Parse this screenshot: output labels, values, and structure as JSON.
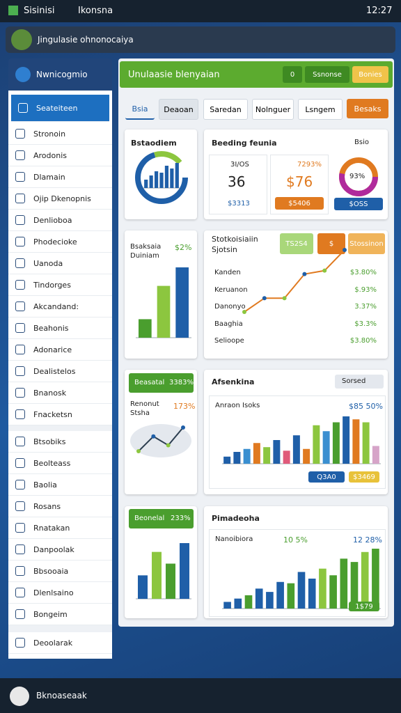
{
  "status": {
    "app": "Sisinisi",
    "app2": "Ikonsna",
    "time": "12:27"
  },
  "search": {
    "placeholder": "Jingulasie ohnonocaiya"
  },
  "sidebar": {
    "title": "Nwnicogmio",
    "groups": [
      [
        "Seateiteen",
        "Stronoin",
        "Arodonis",
        "Dlamain",
        "Ojip Dkenopnis",
        "Denlioboa",
        "Phodecioke",
        "Uanoda",
        "Tindorges",
        "Akcandand:",
        "Beahonis",
        "Adonarice",
        "Dealistelos",
        "Bnanosk",
        "Fnacketsn"
      ],
      [
        "Btsobiks",
        "Beolteass",
        "Baolia",
        "Rosans",
        "Rnatakan",
        "Danpoolak",
        "Bbsooaia",
        "Dlenlsaino",
        "Bongeim"
      ],
      [
        "Deoolarak"
      ]
    ]
  },
  "header": {
    "title": "Unulaasie blenyaian",
    "buttons": [
      "0",
      "Ssnonse",
      "Bonies"
    ]
  },
  "tabs": [
    "Bsia",
    "Deaoan",
    "Saredan",
    "Nolnguer",
    "Lsngem",
    "Besaks"
  ],
  "cards": {
    "overview": {
      "title": "Bstaodiem",
      "values": [
        30,
        45,
        60,
        55,
        80,
        70,
        90
      ],
      "color": "#1f5fa8"
    },
    "kpi": {
      "title": "Beeding feunia",
      "tag": "Bsio",
      "items": [
        {
          "label": "3I/OS",
          "value": "36",
          "sub": "$3313"
        },
        {
          "label": "7293%",
          "value": "$76",
          "sub": "$5406"
        },
        {
          "value": "93%",
          "sub": "$OSS"
        }
      ]
    },
    "bars": {
      "title": "Bsaksaia",
      "subtitle": "Duiniam",
      "stat": "$2%",
      "values": [
        25,
        70,
        95
      ],
      "colors": [
        "#4a9e2e",
        "#8cc63f",
        "#1f5fa8"
      ]
    },
    "trend": {
      "title": "Stotkoisiaiin",
      "subtitle": "Sjotsin",
      "badges": [
        "TS2S4",
        "$",
        "Stossinon"
      ],
      "values": [
        40,
        60,
        60,
        95,
        100,
        130
      ],
      "color": "#e07a20",
      "rows": [
        {
          "label": "Kanden",
          "value": "$3.80%"
        },
        {
          "label": "Keruanon",
          "value": "$.93%"
        },
        {
          "label": "Danonyo",
          "value": "3.37%"
        },
        {
          "label": "Baaghia",
          "value": "$3.3%"
        },
        {
          "label": "Selioope",
          "value": "$3.80%"
        }
      ]
    },
    "map": {
      "badge": "Beasatal",
      "badge_value": "3383%",
      "title": "Renonut",
      "subtitle": "Stsha",
      "stat": "173%",
      "values": [
        30,
        55,
        40,
        70
      ],
      "color": "#2c3e50"
    },
    "columns": {
      "title": "Afsenkina",
      "dropdown": "Sorsed",
      "subtitle": "Anraon Isoks",
      "stat": "$85 50%",
      "buttons": [
        "Q3A0",
        "$3469"
      ],
      "values": [
        12,
        20,
        25,
        35,
        28,
        40,
        22,
        48,
        25,
        65,
        55,
        70,
        80,
        75,
        70,
        30
      ],
      "colors": [
        "#1f5fa8",
        "#1f5fa8",
        "#3a8fd0",
        "#e07a20",
        "#8cc63f",
        "#1f5fa8",
        "#e05a7a",
        "#1f5fa8",
        "#e07a20",
        "#8cc63f",
        "#3a8fd0",
        "#4a9e2e",
        "#1f5fa8",
        "#e07a20",
        "#8cc63f",
        "#d6a4c8"
      ]
    },
    "growth": {
      "badge": "Beonelal",
      "badge_value": "233%",
      "values": [
        40,
        80,
        60,
        95
      ],
      "colors": [
        "#1f5fa8",
        "#8cc63f",
        "#4a9e2e",
        "#1f5fa8"
      ]
    },
    "summary": {
      "title": "Pimadeoha",
      "subtitle": "Nanoibiora",
      "stat": "10 5%",
      "stat2": "12 28%",
      "tag": "1$79",
      "values": [
        10,
        15,
        20,
        30,
        25,
        40,
        38,
        55,
        45,
        60,
        50,
        75,
        70,
        85,
        90
      ],
      "colors": [
        "#1f5fa8",
        "#1f5fa8",
        "#4a9e2e",
        "#1f5fa8",
        "#1f5fa8",
        "#1f5fa8",
        "#4a9e2e",
        "#1f5fa8",
        "#1f5fa8",
        "#8cc63f",
        "#4a9e2e",
        "#4a9e2e",
        "#4a9e2e",
        "#8cc63f",
        "#4a9e2e"
      ]
    }
  },
  "nav": {
    "label": "Bknoaseaak"
  }
}
